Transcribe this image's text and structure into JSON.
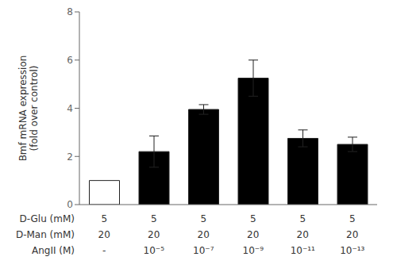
{
  "chart_data": {
    "type": "bar",
    "ylabel": "Bmf mRNA expression\n(fold over control)",
    "categories": [
      null,
      null,
      null,
      null,
      null,
      null
    ],
    "values": [
      1.0,
      2.2,
      3.95,
      5.25,
      2.75,
      2.5
    ],
    "errors": [
      0.0,
      0.65,
      0.2,
      0.75,
      0.35,
      0.3
    ],
    "colors": [
      "white",
      "black",
      "black",
      "black",
      "black",
      "black"
    ],
    "ylim": [
      0,
      8
    ],
    "yticks": [
      0,
      2,
      4,
      6,
      8
    ],
    "table": [
      {
        "label": "D-Glu (mM)",
        "values": [
          "5",
          "5",
          "5",
          "5",
          "5",
          "5"
        ]
      },
      {
        "label": "D-Man (mM)",
        "values": [
          "20",
          "20",
          "20",
          "20",
          "20",
          "20"
        ]
      },
      {
        "label": "AngII (M)",
        "values": [
          "-",
          "10⁻⁵",
          "10⁻⁷",
          "10⁻⁹",
          "10⁻¹¹",
          "10⁻¹³"
        ]
      }
    ]
  }
}
